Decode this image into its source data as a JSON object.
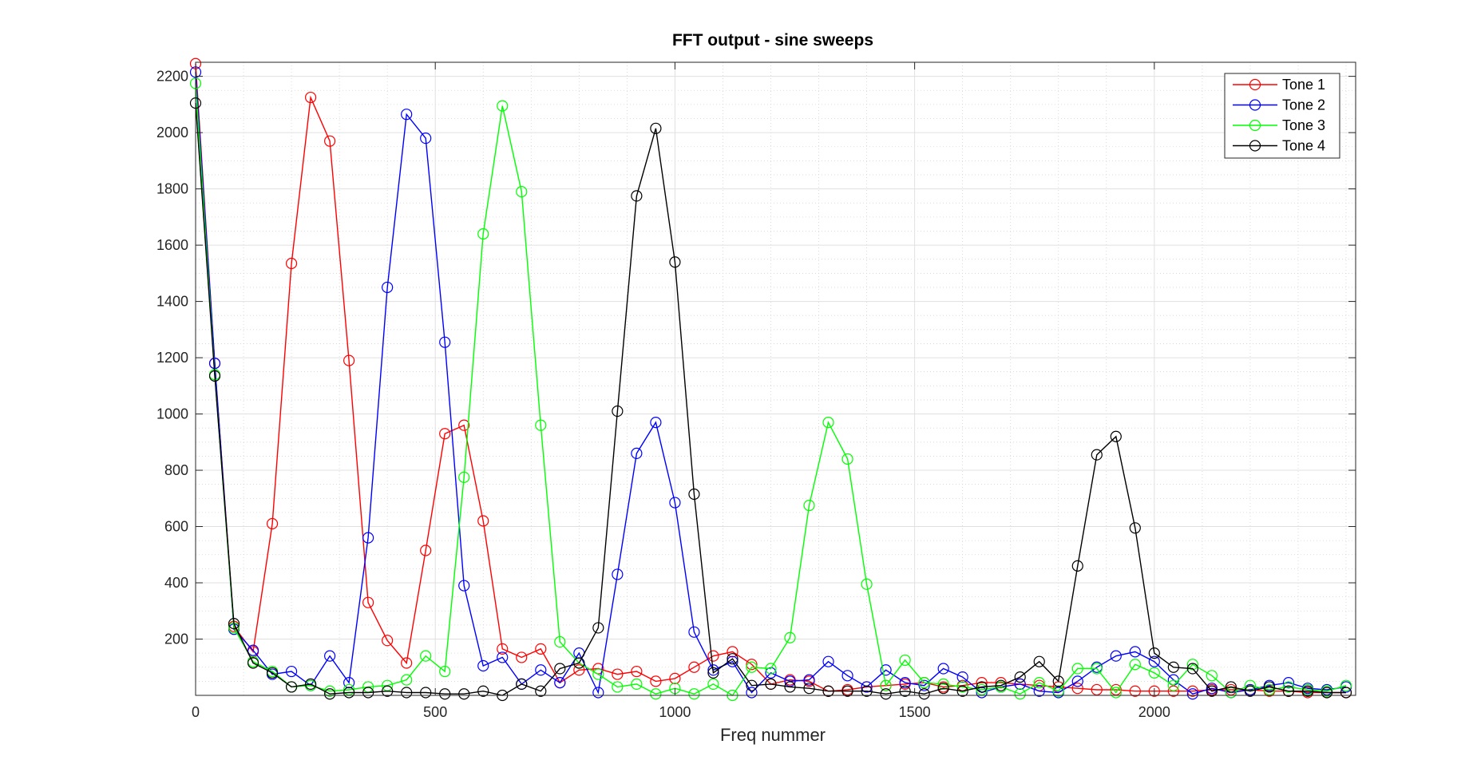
{
  "chart_data": {
    "type": "line",
    "title": "FFT output - sine sweeps",
    "xlabel": "Freq nummer",
    "ylabel": "",
    "xlim": [
      0,
      2420
    ],
    "ylim": [
      0,
      2250
    ],
    "grid": "major and minor",
    "legend_position": "top-right",
    "xticks": [
      {
        "value": 0,
        "label": "0"
      },
      {
        "value": 500,
        "label": "500"
      },
      {
        "value": 1000,
        "label": "1000"
      },
      {
        "value": 1500,
        "label": "1500"
      },
      {
        "value": 2000,
        "label": "2000"
      }
    ],
    "yticks": [
      {
        "value": 200,
        "label": "200"
      },
      {
        "value": 400,
        "label": "400"
      },
      {
        "value": 600,
        "label": "600"
      },
      {
        "value": 800,
        "label": "800"
      },
      {
        "value": 1000,
        "label": "1000"
      },
      {
        "value": 1200,
        "label": "1200"
      },
      {
        "value": 1400,
        "label": "1400"
      },
      {
        "value": 1600,
        "label": "1600"
      },
      {
        "value": 1800,
        "label": "1800"
      },
      {
        "value": 2000,
        "label": "2000"
      },
      {
        "value": 2200,
        "label": "2200"
      }
    ],
    "x": [
      0,
      40,
      80,
      120,
      160,
      200,
      240,
      280,
      320,
      360,
      400,
      440,
      480,
      520,
      560,
      600,
      640,
      680,
      720,
      760,
      800,
      840,
      880,
      920,
      960,
      1000,
      1040,
      1080,
      1120,
      1160,
      1200,
      1240,
      1280,
      1320,
      1360,
      1400,
      1440,
      1480,
      1520,
      1560,
      1600,
      1640,
      1680,
      1720,
      1760,
      1800,
      1840,
      1880,
      1920,
      1960,
      2000,
      2040,
      2080,
      2120,
      2160,
      2200,
      2240,
      2280,
      2320,
      2360,
      2400
    ],
    "series": [
      {
        "name": "Tone 1",
        "color": "#ff0000",
        "values": [
          2245,
          1180,
          245,
          155,
          610,
          1535,
          2125,
          1970,
          1190,
          330,
          195,
          115,
          515,
          930,
          960,
          620,
          165,
          135,
          165,
          45,
          90,
          95,
          75,
          85,
          50,
          60,
          100,
          140,
          155,
          110,
          40,
          55,
          50,
          15,
          20,
          30,
          35,
          40,
          45,
          30,
          35,
          45,
          45,
          40,
          35,
          30,
          25,
          20,
          20,
          15,
          15,
          15,
          15,
          20,
          20,
          20,
          15,
          15,
          10,
          10,
          10
        ]
      },
      {
        "name": "Tone 2",
        "color": "#0000ff",
        "values": [
          2215,
          1180,
          235,
          160,
          75,
          85,
          35,
          140,
          45,
          560,
          1450,
          2065,
          1980,
          1255,
          390,
          105,
          135,
          40,
          90,
          45,
          150,
          10,
          430,
          860,
          970,
          685,
          225,
          90,
          120,
          10,
          80,
          50,
          55,
          120,
          70,
          30,
          90,
          45,
          35,
          95,
          65,
          10,
          30,
          40,
          15,
          10,
          50,
          100,
          140,
          155,
          120,
          55,
          5,
          25,
          10,
          20,
          35,
          45,
          25,
          20,
          30
        ]
      },
      {
        "name": "Tone 3",
        "color": "#00ff00",
        "values": [
          2175,
          1140,
          240,
          120,
          85,
          30,
          35,
          15,
          20,
          30,
          35,
          55,
          140,
          85,
          775,
          1640,
          2095,
          1790,
          960,
          190,
          115,
          75,
          30,
          40,
          5,
          25,
          5,
          40,
          0,
          100,
          95,
          205,
          675,
          970,
          840,
          395,
          35,
          125,
          45,
          40,
          30,
          20,
          30,
          5,
          45,
          15,
          95,
          95,
          10,
          110,
          80,
          35,
          110,
          70,
          10,
          35,
          20,
          30,
          20,
          15,
          35
        ]
      },
      {
        "name": "Tone 4",
        "color": "#000000",
        "values": [
          2105,
          1135,
          255,
          115,
          80,
          30,
          40,
          5,
          10,
          10,
          15,
          10,
          10,
          5,
          5,
          15,
          0,
          40,
          15,
          95,
          115,
          240,
          1010,
          1775,
          2015,
          1540,
          715,
          80,
          130,
          35,
          40,
          30,
          25,
          15,
          15,
          15,
          5,
          15,
          5,
          25,
          15,
          30,
          35,
          65,
          120,
          50,
          460,
          855,
          920,
          595,
          150,
          100,
          95,
          15,
          30,
          15,
          30,
          15,
          15,
          10,
          10
        ]
      }
    ]
  }
}
